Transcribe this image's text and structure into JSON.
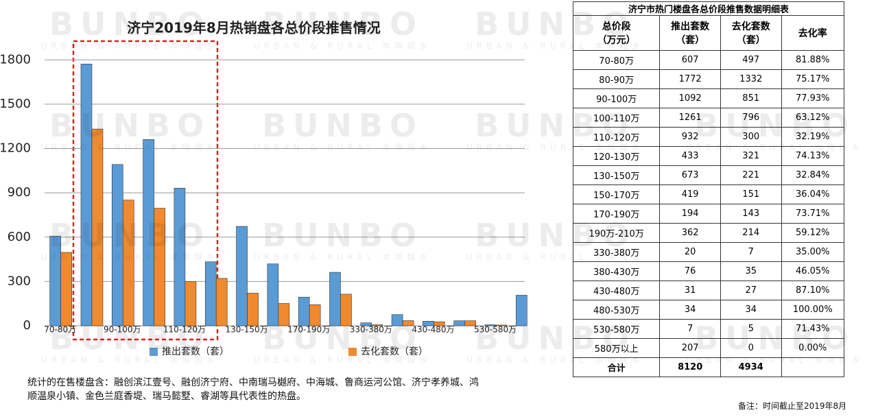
{
  "chart_data": {
    "type": "bar",
    "title": "济宁2019年8月热销盘各总价段推售情况",
    "categories": [
      "70-80万",
      null,
      "90-100万",
      null,
      "110-120万",
      null,
      "130-150万",
      null,
      "170-190万",
      null,
      "330-380万",
      null,
      "430-480万",
      null,
      "530-580万",
      null
    ],
    "series": [
      {
        "name": "推出套数（套）",
        "color": "#5b9bd5",
        "values": [
          607,
          1772,
          1092,
          1261,
          932,
          433,
          673,
          419,
          194,
          362,
          20,
          76,
          31,
          34,
          7,
          207
        ]
      },
      {
        "name": "去化套数（套）",
        "color": "#ef8a2e",
        "values": [
          497,
          1332,
          851,
          796,
          300,
          321,
          221,
          151,
          143,
          214,
          7,
          35,
          27,
          34,
          5,
          0
        ]
      }
    ],
    "ylim": [
      0,
      1950
    ],
    "yticks": [
      0,
      300,
      600,
      900,
      1200,
      1500,
      1800
    ],
    "grid": true,
    "legend": "bottom"
  },
  "table": {
    "title": "济宁市热门楼盘各总价段推售数据明细表",
    "header": [
      "总价段\n（万元）",
      "推出套数\n（套）",
      "去化套数\n（套）",
      "去化率"
    ],
    "rows": [
      [
        "70-80万",
        607,
        497,
        "81.88%"
      ],
      [
        "80-90万",
        1772,
        1332,
        "75.17%"
      ],
      [
        "90-100万",
        1092,
        851,
        "77.93%"
      ],
      [
        "100-110万",
        1261,
        796,
        "63.12%"
      ],
      [
        "110-120万",
        932,
        300,
        "32.19%"
      ],
      [
        "120-130万",
        433,
        321,
        "74.13%"
      ],
      [
        "130-150万",
        673,
        221,
        "32.84%"
      ],
      [
        "150-170万",
        419,
        151,
        "36.04%"
      ],
      [
        "170-190万",
        194,
        143,
        "73.71%"
      ],
      [
        "190万-210万",
        362,
        214,
        "59.12%"
      ],
      [
        "330-380万",
        20,
        7,
        "35.00%"
      ],
      [
        "380-430万",
        76,
        35,
        "46.05%"
      ],
      [
        "430-480万",
        31,
        27,
        "87.10%"
      ],
      [
        "480-530万",
        34,
        34,
        "100.00%"
      ],
      [
        "530-580万",
        7,
        5,
        "71.43%"
      ],
      [
        "580万以上",
        207,
        0,
        "0.00%"
      ]
    ],
    "total": [
      "合计",
      8120,
      4934
    ]
  },
  "footnote": "统计的在售楼盘含：融创滨江壹号、融创济宁府、中南瑞马樾府、中海城、鲁商运河公馆、济宁孝养城、鸿顺温泉小镇、金色兰庭香堤、瑞马懿墅、睿湖等具代表性的热盘。",
  "note": "备注：时间截止至2019年8月",
  "watermark": {
    "brand": "BUNBO",
    "tagline": "URBAN & RURAL 本埠城乡"
  }
}
